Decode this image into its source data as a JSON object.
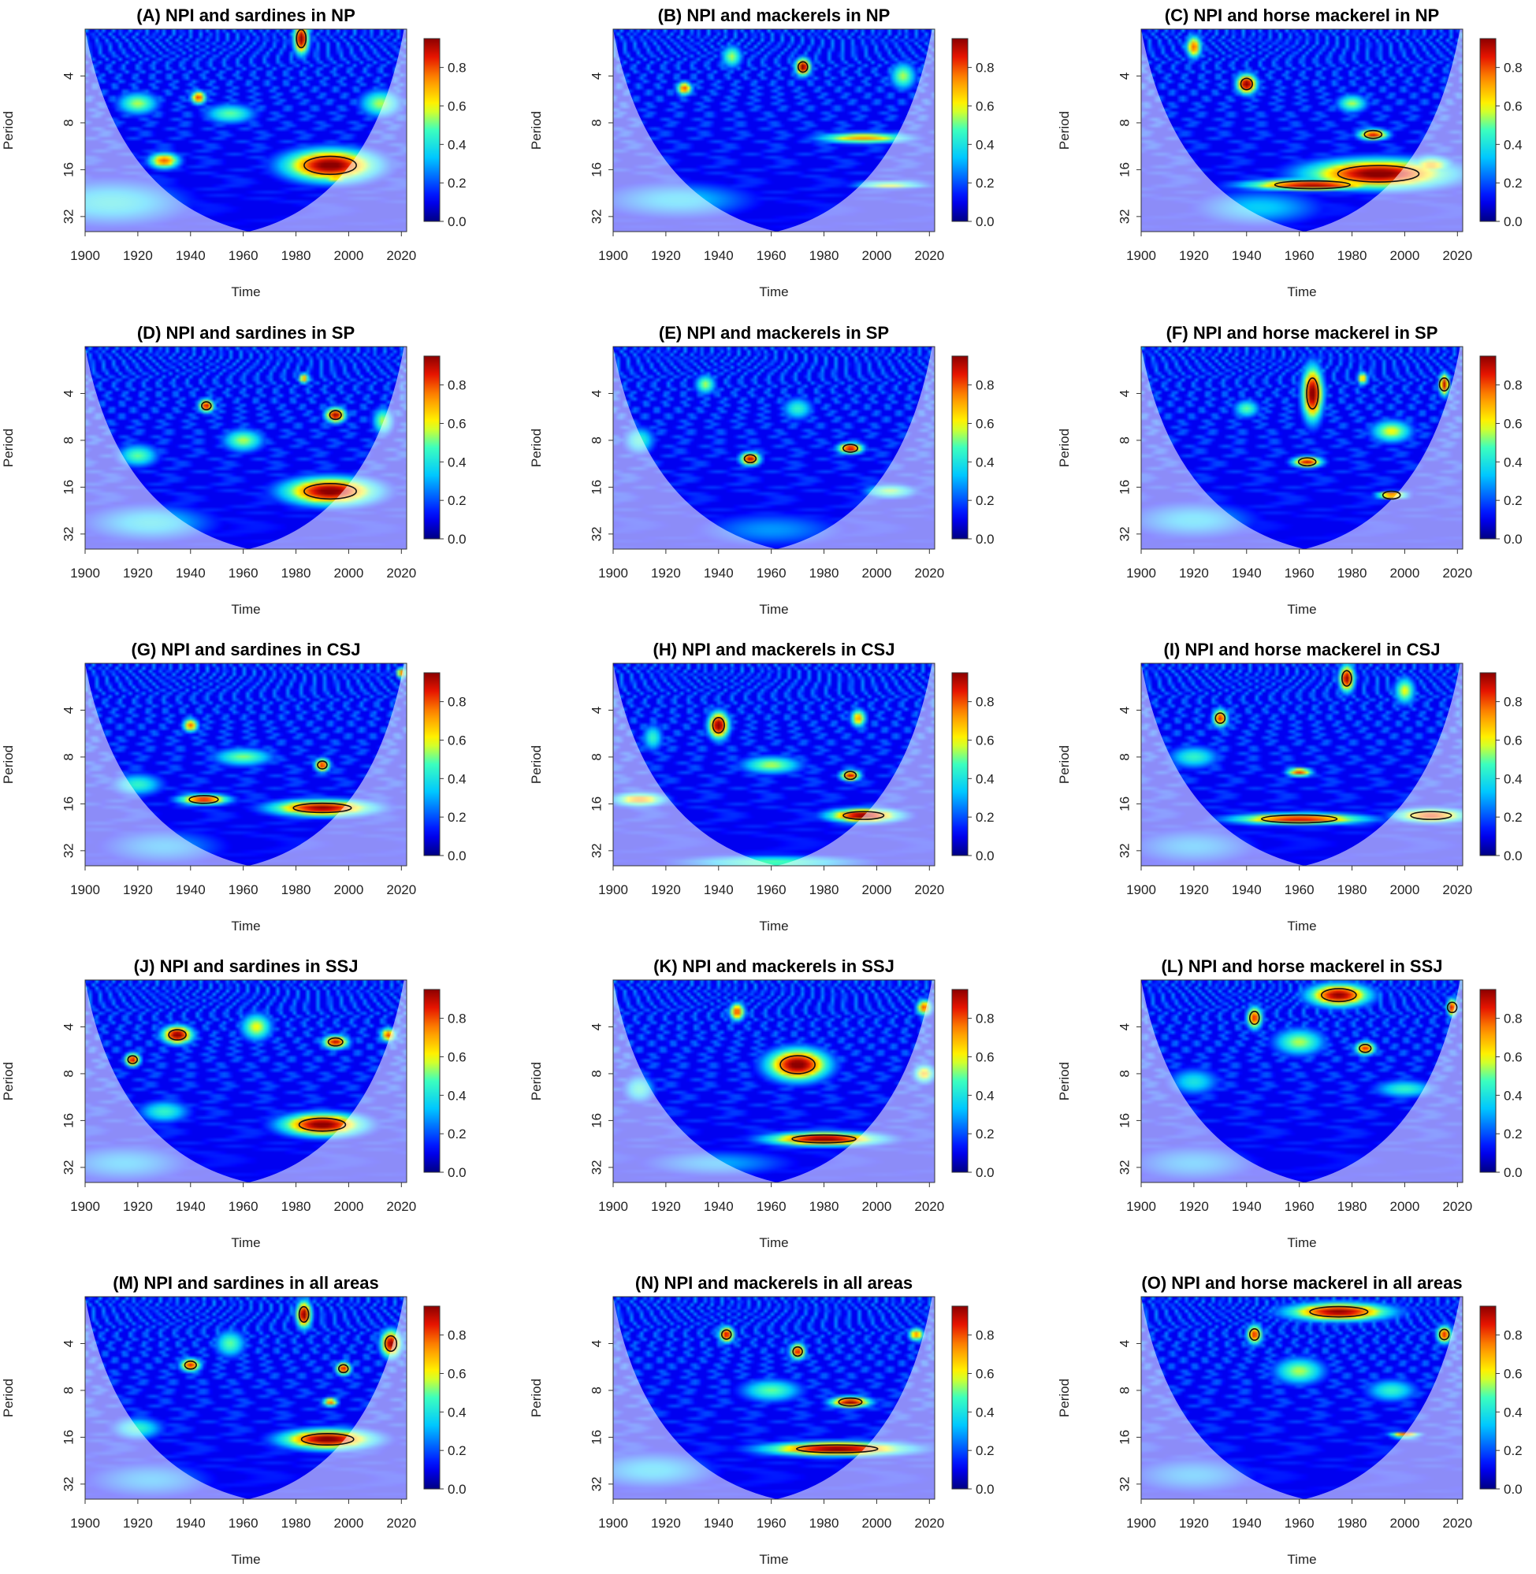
{
  "chart_data": {
    "type": "heatmap",
    "description_kind": "wavelet coherence grid",
    "x_ticks": [
      1900,
      1920,
      1940,
      1960,
      1980,
      2000,
      2020
    ],
    "y_ticks": [
      4,
      8,
      16,
      32
    ],
    "xlabel": "Time",
    "ylabel": "Period",
    "colorbar_ticks": [
      "0.0",
      "0.2",
      "0.4",
      "0.6",
      "0.8"
    ],
    "colorbar_range": [
      0,
      0.95
    ],
    "x_range": [
      1900,
      2022
    ],
    "y_range_period": [
      2,
      40
    ],
    "panels": [
      {
        "title": "(A) NPI and sardines in NP",
        "blobs": [
          [
            1993,
            15,
            18,
            0.35,
            0.98
          ],
          [
            1995,
            18,
            6,
            0.08,
            0.78
          ],
          [
            1982,
            2.3,
            3,
            0.35,
            0.98
          ],
          [
            1943,
            5.5,
            3,
            0.15,
            0.82
          ],
          [
            1930,
            14,
            6,
            0.18,
            0.78
          ],
          [
            1920,
            6,
            8,
            0.25,
            0.55
          ],
          [
            1955,
            7,
            10,
            0.22,
            0.5
          ],
          [
            2012,
            6,
            8,
            0.3,
            0.55
          ],
          [
            1910,
            26,
            30,
            0.5,
            0.4
          ]
        ]
      },
      {
        "title": "(B) NPI and mackerels in NP",
        "blobs": [
          [
            1972,
            3.5,
            3,
            0.2,
            0.98
          ],
          [
            1927,
            4.8,
            3,
            0.15,
            0.8
          ],
          [
            1995,
            10,
            18,
            0.12,
            0.72
          ],
          [
            2005,
            20,
            14,
            0.08,
            0.62
          ],
          [
            1945,
            3.0,
            4,
            0.25,
            0.55
          ],
          [
            2010,
            4,
            5,
            0.3,
            0.55
          ],
          [
            1925,
            25,
            30,
            0.4,
            0.35
          ]
        ]
      },
      {
        "title": "(C) NPI and horse mackerel in NP",
        "blobs": [
          [
            1990,
            17,
            28,
            0.32,
            0.98
          ],
          [
            1965,
            20,
            26,
            0.12,
            0.95
          ],
          [
            1940,
            4.5,
            4,
            0.22,
            0.98
          ],
          [
            1988,
            9.5,
            6,
            0.12,
            0.88
          ],
          [
            1920,
            2.6,
            3,
            0.25,
            0.78
          ],
          [
            2010,
            15,
            8,
            0.2,
            0.7
          ],
          [
            1980,
            6,
            6,
            0.2,
            0.55
          ],
          [
            1945,
            28,
            25,
            0.4,
            0.35
          ]
        ]
      },
      {
        "title": "(D) NPI and sardines in SP",
        "blobs": [
          [
            1993,
            17,
            18,
            0.3,
            0.98
          ],
          [
            1946,
            4.8,
            3,
            0.15,
            0.9
          ],
          [
            1995,
            5.5,
            4,
            0.17,
            0.95
          ],
          [
            1983,
            3.2,
            2,
            0.12,
            0.75
          ],
          [
            1920,
            10,
            8,
            0.25,
            0.5
          ],
          [
            1960,
            8,
            8,
            0.25,
            0.55
          ],
          [
            2013,
            6,
            4,
            0.3,
            0.55
          ],
          [
            1925,
            27,
            25,
            0.4,
            0.38
          ]
        ]
      },
      {
        "title": "(E) NPI and mackerels in SP",
        "blobs": [
          [
            1952,
            10.5,
            4,
            0.15,
            0.92
          ],
          [
            1990,
            9,
            5,
            0.12,
            0.92
          ],
          [
            1935,
            3.5,
            4,
            0.22,
            0.55
          ],
          [
            1970,
            5,
            6,
            0.25,
            0.45
          ],
          [
            2005,
            17,
            10,
            0.15,
            0.55
          ],
          [
            1910,
            8,
            6,
            0.3,
            0.45
          ],
          [
            1960,
            30,
            30,
            0.4,
            0.28
          ]
        ]
      },
      {
        "title": "(F) NPI and horse mackerel in SP",
        "blobs": [
          [
            1965,
            4,
            4,
            0.6,
            0.98
          ],
          [
            1963,
            11,
            6,
            0.12,
            0.88
          ],
          [
            1995,
            18,
            6,
            0.08,
            0.85
          ],
          [
            2015,
            3.5,
            2,
            0.25,
            0.92
          ],
          [
            1984,
            3.2,
            2,
            0.15,
            0.7
          ],
          [
            1940,
            5,
            5,
            0.2,
            0.5
          ],
          [
            1995,
            7,
            8,
            0.25,
            0.6
          ],
          [
            1920,
            26,
            25,
            0.4,
            0.35
          ]
        ]
      },
      {
        "title": "(G) NPI and sardines in CSJ",
        "blobs": [
          [
            1990,
            17,
            20,
            0.18,
            0.95
          ],
          [
            1945,
            15,
            10,
            0.12,
            0.88
          ],
          [
            1990,
            9,
            3,
            0.15,
            0.86
          ],
          [
            1940,
            5,
            3,
            0.15,
            0.78
          ],
          [
            1960,
            8,
            12,
            0.2,
            0.52
          ],
          [
            1920,
            12,
            10,
            0.25,
            0.45
          ],
          [
            2020,
            2.3,
            2,
            0.12,
            0.8
          ],
          [
            1930,
            30,
            25,
            0.4,
            0.3
          ]
        ]
      },
      {
        "title": "(H) NPI and mackerels in CSJ",
        "blobs": [
          [
            1940,
            5,
            4,
            0.3,
            0.98
          ],
          [
            1995,
            19,
            14,
            0.15,
            0.98
          ],
          [
            1990,
            10.5,
            4,
            0.12,
            0.9
          ],
          [
            1910,
            15,
            10,
            0.15,
            0.75
          ],
          [
            1960,
            9,
            12,
            0.2,
            0.55
          ],
          [
            1993,
            4.5,
            3,
            0.2,
            0.72
          ],
          [
            1960,
            38,
            35,
            0.15,
            0.5
          ],
          [
            1915,
            6,
            4,
            0.3,
            0.45
          ]
        ]
      },
      {
        "title": "(I) NPI and horse mackerel in CSJ",
        "blobs": [
          [
            1960,
            20,
            26,
            0.12,
            0.9
          ],
          [
            2010,
            19,
            14,
            0.15,
            0.85
          ],
          [
            1960,
            10,
            5,
            0.1,
            0.82
          ],
          [
            1930,
            4.5,
            3,
            0.2,
            0.85
          ],
          [
            1978,
            2.5,
            3,
            0.3,
            0.95
          ],
          [
            2000,
            3,
            4,
            0.3,
            0.6
          ],
          [
            1920,
            8,
            10,
            0.25,
            0.45
          ],
          [
            1920,
            30,
            25,
            0.4,
            0.3
          ]
        ]
      },
      {
        "title": "(J) NPI and sardines in SSJ",
        "blobs": [
          [
            1990,
            17,
            16,
            0.25,
            0.98
          ],
          [
            1935,
            4.5,
            6,
            0.2,
            0.98
          ],
          [
            1918,
            6.5,
            3,
            0.15,
            0.9
          ],
          [
            1995,
            5,
            5,
            0.15,
            0.9
          ],
          [
            2015,
            4.5,
            3,
            0.15,
            0.82
          ],
          [
            1965,
            4,
            6,
            0.3,
            0.6
          ],
          [
            1930,
            14,
            10,
            0.25,
            0.45
          ],
          [
            1915,
            30,
            25,
            0.4,
            0.32
          ]
        ]
      },
      {
        "title": "(K) NPI and mackerels in SSJ",
        "blobs": [
          [
            1970,
            7,
            12,
            0.35,
            0.98
          ],
          [
            1980,
            21,
            22,
            0.15,
            0.98
          ],
          [
            1947,
            3.2,
            3,
            0.2,
            0.82
          ],
          [
            2018,
            3,
            3,
            0.18,
            0.8
          ],
          [
            2018,
            8,
            4,
            0.2,
            0.7
          ],
          [
            1910,
            10,
            6,
            0.3,
            0.45
          ],
          [
            1940,
            30,
            30,
            0.3,
            0.3
          ]
        ]
      },
      {
        "title": "(L) NPI and horse mackerel in SSJ",
        "blobs": [
          [
            1975,
            2.5,
            12,
            0.25,
            0.95
          ],
          [
            1943,
            3.5,
            3,
            0.25,
            0.85
          ],
          [
            1985,
            5.5,
            4,
            0.15,
            0.85
          ],
          [
            2018,
            3,
            2,
            0.2,
            0.9
          ],
          [
            1960,
            5,
            10,
            0.3,
            0.55
          ],
          [
            1920,
            9,
            10,
            0.3,
            0.4
          ],
          [
            2000,
            10,
            12,
            0.2,
            0.45
          ],
          [
            1920,
            30,
            25,
            0.4,
            0.3
          ]
        ]
      },
      {
        "title": "(M) NPI and sardines in all areas",
        "blobs": [
          [
            1992,
            16.5,
            18,
            0.22,
            0.98
          ],
          [
            1983,
            2.6,
            3,
            0.3,
            0.98
          ],
          [
            2016,
            4,
            4,
            0.3,
            0.95
          ],
          [
            1998,
            5.8,
            3,
            0.15,
            0.88
          ],
          [
            1940,
            5.5,
            4,
            0.15,
            0.85
          ],
          [
            1993,
            9.5,
            3,
            0.1,
            0.78
          ],
          [
            1955,
            4,
            6,
            0.3,
            0.5
          ],
          [
            1920,
            14,
            10,
            0.25,
            0.45
          ],
          [
            1925,
            30,
            25,
            0.4,
            0.3
          ]
        ]
      },
      {
        "title": "(N) NPI and mackerels in all areas",
        "blobs": [
          [
            1985,
            19,
            28,
            0.15,
            0.98
          ],
          [
            1990,
            9.5,
            8,
            0.12,
            0.96
          ],
          [
            1943,
            3.5,
            3,
            0.18,
            0.9
          ],
          [
            1970,
            4.5,
            3,
            0.18,
            0.88
          ],
          [
            2015,
            3.5,
            3,
            0.15,
            0.75
          ],
          [
            1960,
            8,
            12,
            0.25,
            0.5
          ],
          [
            1915,
            26,
            25,
            0.4,
            0.35
          ]
        ]
      },
      {
        "title": "(O) NPI and horse mackerel in all areas",
        "blobs": [
          [
            1975,
            2.5,
            20,
            0.2,
            0.95
          ],
          [
            1943,
            3.5,
            3,
            0.22,
            0.85
          ],
          [
            2000,
            15.5,
            6,
            0.06,
            0.82
          ],
          [
            2015,
            3.5,
            3,
            0.2,
            0.85
          ],
          [
            1960,
            6,
            10,
            0.3,
            0.55
          ],
          [
            1995,
            8,
            10,
            0.25,
            0.45
          ],
          [
            1920,
            28,
            25,
            0.4,
            0.3
          ]
        ]
      }
    ]
  }
}
